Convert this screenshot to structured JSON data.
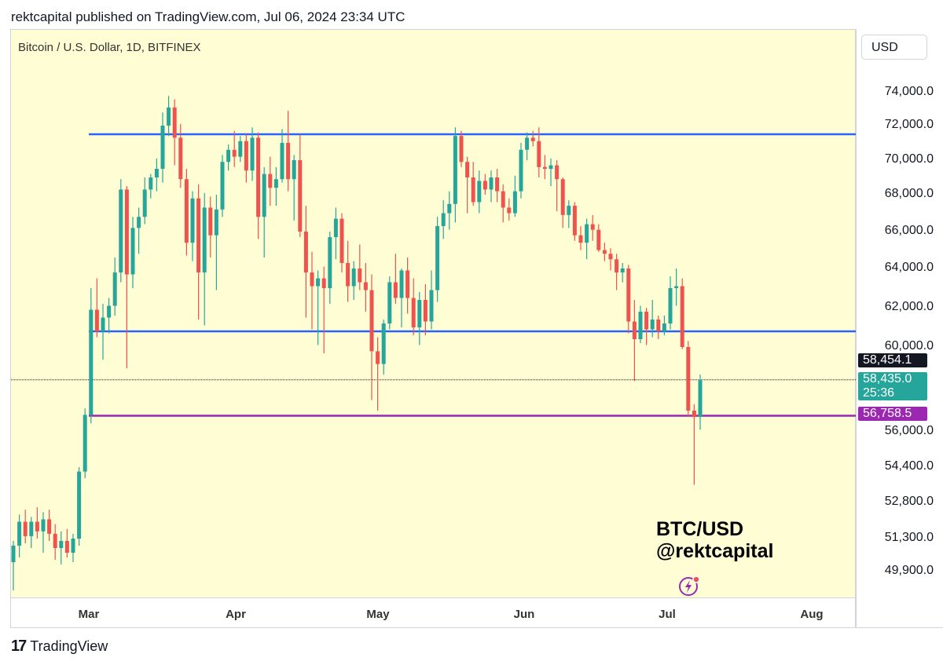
{
  "header": "rektcapital published on TradingView.com, Jul 06, 2024 23:34 UTC",
  "symbol_title": "Bitcoin / U.S. Dollar, 1D, BITFINEX",
  "currency": "USD",
  "watermark": [
    "BTC/USD",
    "@rektcapital"
  ],
  "footer_brand": "TradingView",
  "icons": [
    "tradingview-logo-icon",
    "lightning-bolt-icon"
  ],
  "colors": {
    "up": "#26a69a",
    "down": "#ef5350",
    "blue_line": "#2962ff",
    "purple_line": "#9c27b0",
    "background": "#fffdd4"
  },
  "chart_data": {
    "type": "candlestick",
    "title": "Bitcoin / U.S. Dollar, 1D, BITFINEX",
    "price_axis_labels": [
      "74,000.0",
      "72,000.0",
      "70,000.0",
      "68,000.0",
      "66,000.0",
      "64,000.0",
      "62,000.0",
      "60,000.0",
      "56,000.0",
      "54,400.0",
      "52,800.0",
      "51,300.0",
      "49,900.0"
    ],
    "time_axis_labels": [
      "Mar",
      "Apr",
      "May",
      "Jun",
      "Jul",
      "Aug"
    ],
    "price_tags": [
      {
        "value": "58,454.1",
        "color": "#131722"
      },
      {
        "value": "58,435.0",
        "sub": "25:36",
        "color": "#26a69a"
      },
      {
        "value": "56,758.5",
        "color": "#9c27b0"
      }
    ],
    "horizontal_lines": [
      {
        "value": 71500,
        "color": "blue"
      },
      {
        "value": 60800,
        "color": "blue"
      },
      {
        "value": 56758.5,
        "color": "purple"
      },
      {
        "value": 58454.1,
        "color": "black",
        "style": "dotted"
      }
    ],
    "ohlc": [
      [
        50300,
        51200,
        49100,
        51000
      ],
      [
        51000,
        52300,
        50500,
        52000
      ],
      [
        52000,
        52500,
        51100,
        51400
      ],
      [
        51400,
        52200,
        50900,
        52000
      ],
      [
        52000,
        52600,
        51300,
        51600
      ],
      [
        51600,
        52400,
        50700,
        52100
      ],
      [
        52100,
        52500,
        51200,
        51500
      ],
      [
        51500,
        51900,
        50400,
        50900
      ],
      [
        50900,
        51600,
        50200,
        51200
      ],
      [
        51200,
        51700,
        50500,
        50700
      ],
      [
        50700,
        51500,
        50300,
        51300
      ],
      [
        51300,
        54400,
        51000,
        54200
      ],
      [
        54200,
        57100,
        53900,
        56800
      ],
      [
        56800,
        63000,
        56400,
        61900
      ],
      [
        61900,
        63500,
        60500,
        60800
      ],
      [
        60800,
        62200,
        59400,
        61500
      ],
      [
        61500,
        62500,
        60700,
        62100
      ],
      [
        62100,
        64600,
        61600,
        63800
      ],
      [
        63800,
        68900,
        63300,
        68300
      ],
      [
        68300,
        68500,
        59000,
        63700
      ],
      [
        63700,
        66800,
        63000,
        66200
      ],
      [
        66200,
        67300,
        64800,
        66800
      ],
      [
        66800,
        69000,
        66400,
        68300
      ],
      [
        68300,
        69200,
        67800,
        69000
      ],
      [
        69000,
        70100,
        68200,
        69500
      ],
      [
        69500,
        72800,
        68700,
        72000
      ],
      [
        72000,
        73800,
        71400,
        73100
      ],
      [
        73100,
        73600,
        69700,
        71300
      ],
      [
        71300,
        72100,
        68400,
        68900
      ],
      [
        68900,
        69500,
        64700,
        65400
      ],
      [
        65400,
        68200,
        64400,
        67800
      ],
      [
        67800,
        68600,
        61400,
        63800
      ],
      [
        63800,
        68100,
        61100,
        67300
      ],
      [
        67300,
        67900,
        64600,
        65800
      ],
      [
        65800,
        68000,
        62900,
        67200
      ],
      [
        67200,
        70300,
        66800,
        69900
      ],
      [
        69900,
        70900,
        69400,
        70600
      ],
      [
        70600,
        71700,
        69600,
        70200
      ],
      [
        70200,
        71400,
        69900,
        71100
      ],
      [
        71100,
        71500,
        68700,
        69400
      ],
      [
        69400,
        71900,
        68800,
        71300
      ],
      [
        71300,
        71600,
        65600,
        66800
      ],
      [
        66800,
        69600,
        64600,
        69200
      ],
      [
        69200,
        70200,
        67400,
        68400
      ],
      [
        68400,
        69600,
        67400,
        68900
      ],
      [
        68900,
        71800,
        68700,
        71000
      ],
      [
        71000,
        72900,
        68200,
        68900
      ],
      [
        68900,
        70300,
        66600,
        70000
      ],
      [
        70000,
        71500,
        65700,
        66000
      ],
      [
        66000,
        67400,
        61500,
        63800
      ],
      [
        63800,
        64900,
        60900,
        63100
      ],
      [
        63100,
        63900,
        60100,
        63500
      ],
      [
        63500,
        64100,
        59700,
        63000
      ],
      [
        63000,
        66000,
        62200,
        65700
      ],
      [
        65700,
        67300,
        64500,
        66700
      ],
      [
        66700,
        67000,
        63800,
        64300
      ],
      [
        64300,
        65500,
        62300,
        63100
      ],
      [
        63100,
        64400,
        62400,
        64000
      ],
      [
        64000,
        65300,
        62900,
        63300
      ],
      [
        63300,
        64300,
        61800,
        62900
      ],
      [
        62900,
        63700,
        57500,
        59800
      ],
      [
        59800,
        60500,
        57000,
        59200
      ],
      [
        59200,
        61400,
        58700,
        61200
      ],
      [
        61200,
        63600,
        60900,
        63300
      ],
      [
        63300,
        64800,
        62200,
        62500
      ],
      [
        62500,
        64000,
        61000,
        63900
      ],
      [
        63900,
        64600,
        61700,
        62500
      ],
      [
        62500,
        63500,
        60600,
        61000
      ],
      [
        61000,
        62800,
        60100,
        62400
      ],
      [
        62400,
        63200,
        60600,
        61300
      ],
      [
        61300,
        63900,
        60900,
        62900
      ],
      [
        62900,
        66800,
        62300,
        66300
      ],
      [
        66300,
        67700,
        65600,
        67000
      ],
      [
        67000,
        68200,
        66100,
        67500
      ],
      [
        67500,
        71900,
        66500,
        71400
      ],
      [
        71400,
        71700,
        69600,
        69900
      ],
      [
        69900,
        70200,
        67000,
        69000
      ],
      [
        69000,
        69900,
        67400,
        67600
      ],
      [
        67600,
        69400,
        67000,
        68800
      ],
      [
        68800,
        69200,
        68000,
        68300
      ],
      [
        68300,
        69400,
        67600,
        69000
      ],
      [
        69000,
        69500,
        67600,
        68200
      ],
      [
        68200,
        68600,
        66500,
        67300
      ],
      [
        67300,
        67800,
        66600,
        67000
      ],
      [
        67000,
        69100,
        66800,
        68200
      ],
      [
        68200,
        71000,
        67800,
        70600
      ],
      [
        70600,
        71600,
        70000,
        71300
      ],
      [
        71300,
        71700,
        70800,
        71100
      ],
      [
        71100,
        71900,
        69000,
        69600
      ],
      [
        69600,
        70300,
        68900,
        69500
      ],
      [
        69500,
        70100,
        68500,
        69700
      ],
      [
        69700,
        70000,
        67100,
        68900
      ],
      [
        68900,
        69000,
        66200,
        66900
      ],
      [
        66900,
        67700,
        66200,
        67400
      ],
      [
        67400,
        67600,
        65500,
        65800
      ],
      [
        65800,
        66300,
        65000,
        65400
      ],
      [
        65400,
        66700,
        64500,
        66400
      ],
      [
        66400,
        66900,
        65500,
        66100
      ],
      [
        66100,
        66400,
        64900,
        65000
      ],
      [
        65000,
        65400,
        64400,
        64800
      ],
      [
        64800,
        65100,
        63900,
        64500
      ],
      [
        64500,
        64800,
        62900,
        63800
      ],
      [
        63800,
        64300,
        63300,
        64000
      ],
      [
        64000,
        64200,
        60700,
        61300
      ],
      [
        61300,
        62400,
        58400,
        60400
      ],
      [
        60400,
        62100,
        60200,
        61800
      ],
      [
        61800,
        62000,
        60100,
        60900
      ],
      [
        60900,
        62400,
        60500,
        61400
      ],
      [
        61400,
        61600,
        60400,
        60800
      ],
      [
        60800,
        61600,
        60600,
        61200
      ],
      [
        61200,
        63600,
        60900,
        63000
      ],
      [
        63000,
        64000,
        62100,
        63100
      ],
      [
        63100,
        63500,
        59900,
        60000
      ],
      [
        60000,
        60300,
        56700,
        57000
      ],
      [
        57000,
        57300,
        53600,
        56700
      ],
      [
        56700,
        58700,
        56100,
        58435
      ]
    ]
  }
}
